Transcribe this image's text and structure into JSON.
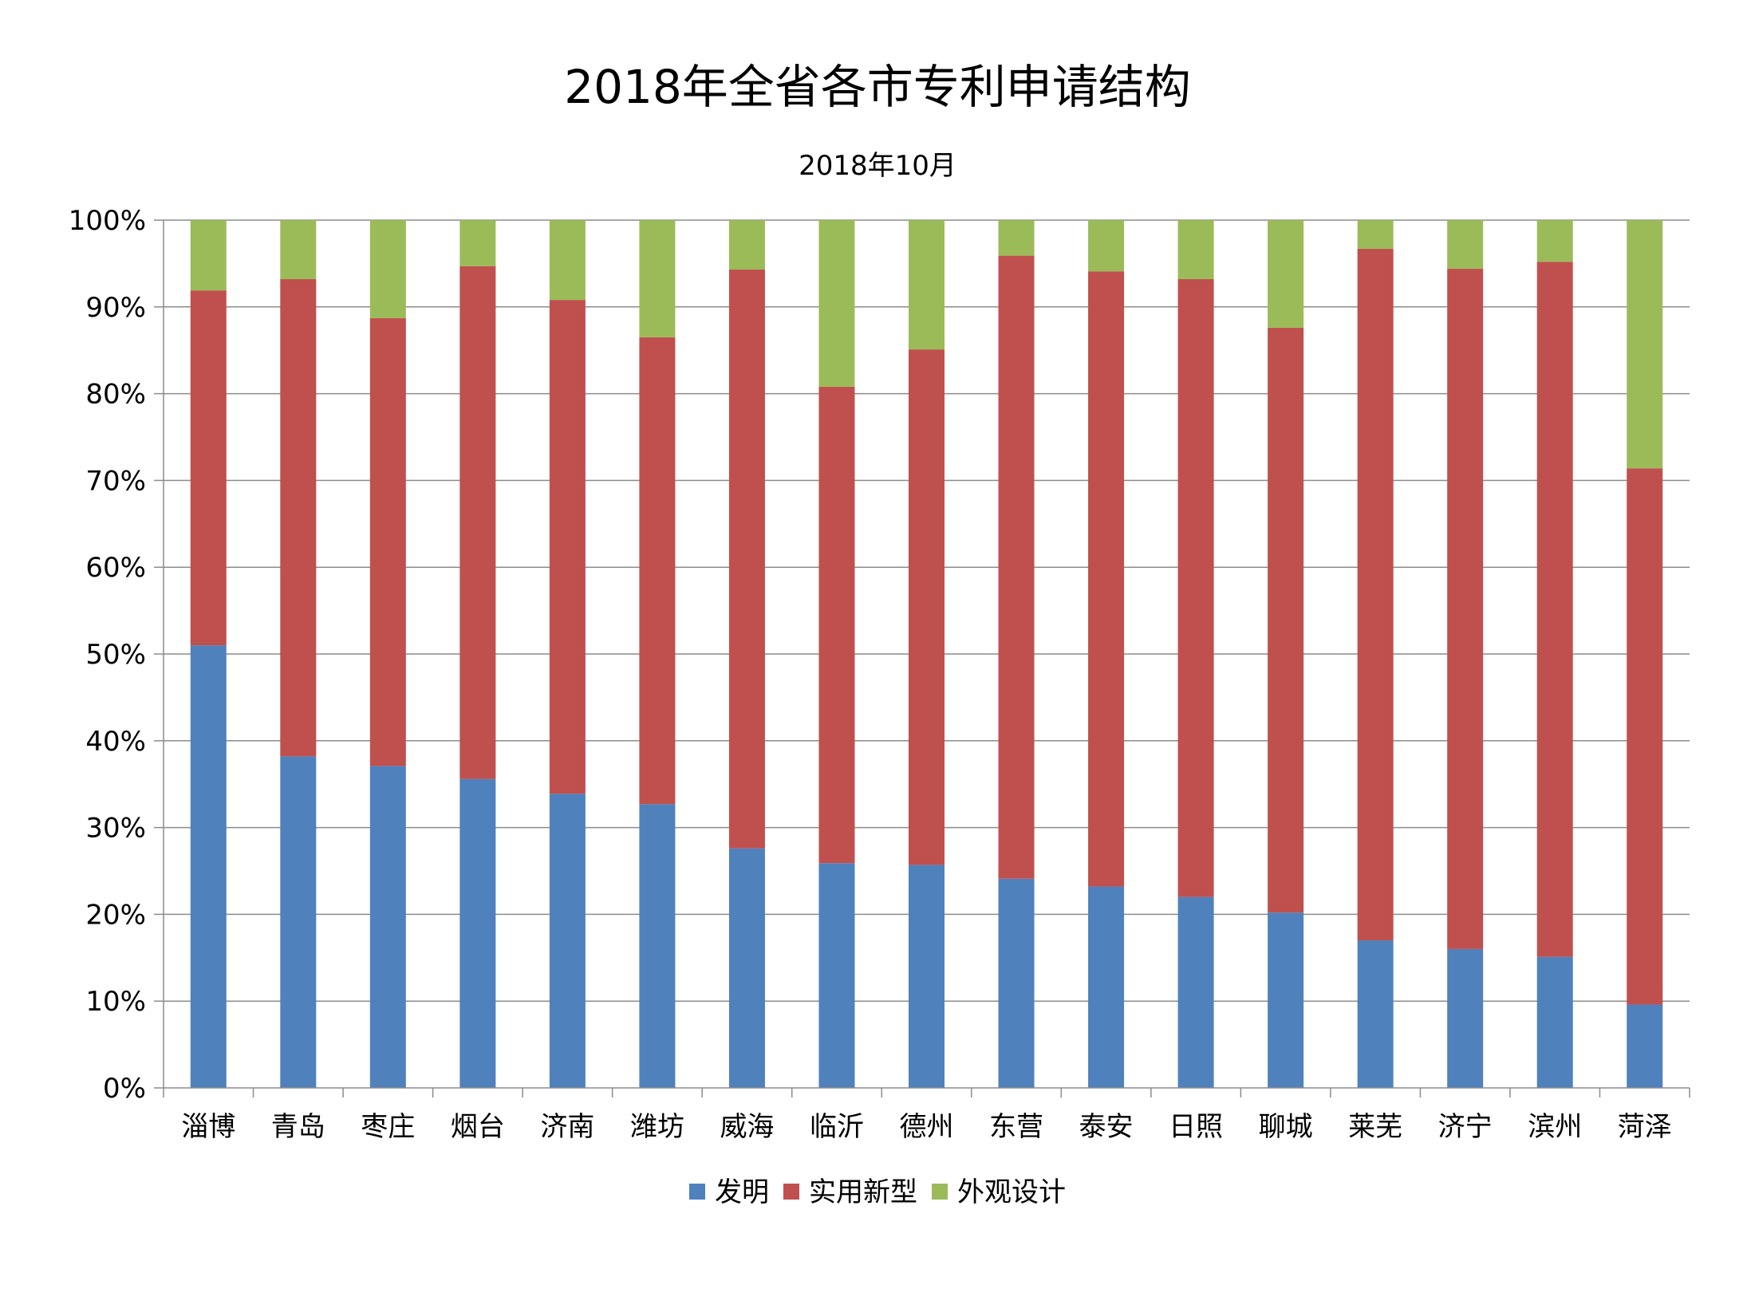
{
  "chart_data": {
    "type": "bar",
    "stacked": "percent",
    "title": "2018年全省各市专利申请结构",
    "subtitle": "2018年10月",
    "xlabel": "",
    "ylabel": "",
    "ylim": [
      0,
      100
    ],
    "y_ticks": [
      "0%",
      "10%",
      "20%",
      "30%",
      "40%",
      "50%",
      "60%",
      "70%",
      "80%",
      "90%",
      "100%"
    ],
    "grid": true,
    "legend_position": "bottom",
    "categories": [
      "淄博",
      "青岛",
      "枣庄",
      "烟台",
      "济南",
      "潍坊",
      "威海",
      "临沂",
      "德州",
      "东营",
      "泰安",
      "日照",
      "聊城",
      "莱芜",
      "济宁",
      "滨州",
      "菏泽"
    ],
    "series": [
      {
        "name": "发明",
        "color": "#4F81BD",
        "values": [
          51.0,
          38.2,
          37.1,
          35.6,
          33.9,
          32.7,
          27.6,
          25.9,
          25.7,
          24.1,
          23.2,
          22.0,
          20.2,
          17.0,
          16.0,
          15.1,
          9.6
        ]
      },
      {
        "name": "实用新型",
        "color": "#C0504D",
        "values": [
          40.9,
          55.0,
          51.6,
          59.1,
          56.9,
          53.8,
          66.7,
          54.9,
          59.4,
          71.8,
          70.9,
          71.2,
          67.4,
          79.7,
          78.4,
          80.1,
          61.8
        ]
      },
      {
        "name": "外观设计",
        "color": "#9BBB59",
        "values": [
          8.1,
          6.8,
          11.3,
          5.3,
          9.2,
          13.5,
          5.7,
          19.2,
          14.9,
          4.1,
          5.9,
          6.8,
          12.4,
          3.3,
          5.6,
          4.8,
          28.6
        ]
      }
    ]
  }
}
